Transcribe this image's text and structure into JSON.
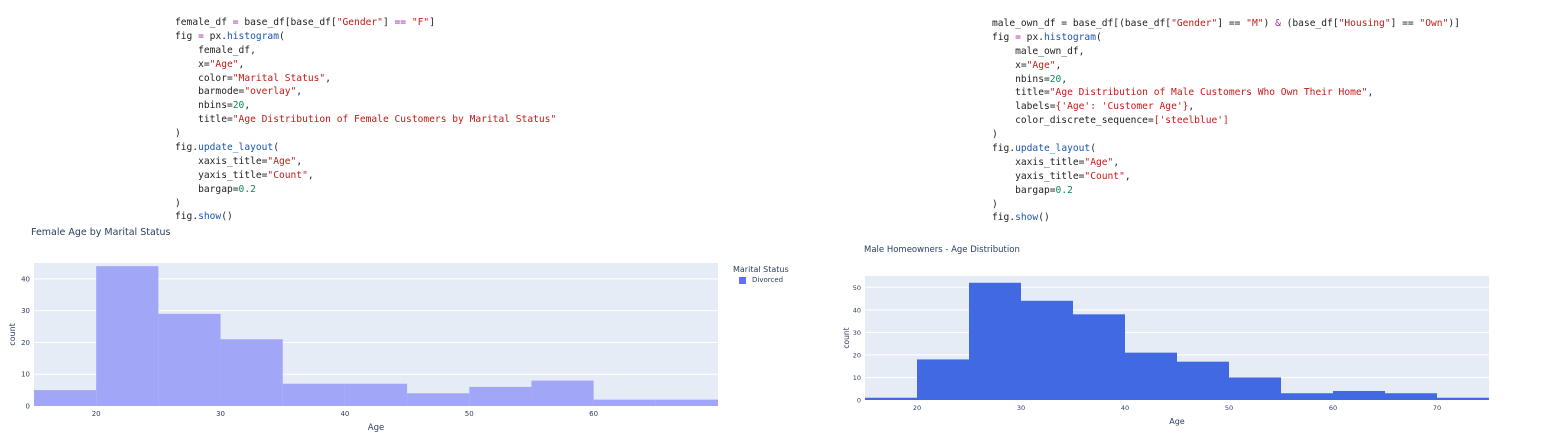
{
  "left": {
    "code_lines": [
      [
        [
          "female_df",
          "plain"
        ],
        [
          " = ",
          "op"
        ],
        [
          "base_df[base_df[",
          "plain"
        ],
        [
          "\"Gender\"",
          "str"
        ],
        [
          "] ",
          "plain"
        ],
        [
          "==",
          "op"
        ],
        [
          " ",
          "plain"
        ],
        [
          "\"F\"",
          "str"
        ],
        [
          "]",
          "plain"
        ]
      ],
      [
        [
          "fig ",
          "plain"
        ],
        [
          "=",
          "op"
        ],
        [
          " px.",
          "plain"
        ],
        [
          "histogram",
          "fn"
        ],
        [
          "(",
          "plain"
        ]
      ],
      [
        [
          "    female_df,",
          "plain"
        ]
      ],
      [
        [
          "    x=",
          "plain"
        ],
        [
          "\"Age\"",
          "str"
        ],
        [
          ",",
          "plain"
        ]
      ],
      [
        [
          "    color=",
          "plain"
        ],
        [
          "\"Marital Status\"",
          "str"
        ],
        [
          ",",
          "plain"
        ]
      ],
      [
        [
          "    barmode=",
          "plain"
        ],
        [
          "\"overlay\"",
          "str"
        ],
        [
          ",",
          "plain"
        ]
      ],
      [
        [
          "    nbins=",
          "plain"
        ],
        [
          "20",
          "num"
        ],
        [
          ",",
          "plain"
        ]
      ],
      [
        [
          "    title=",
          "plain"
        ],
        [
          "\"Age Distribution of Female Customers by Marital Status\"",
          "str"
        ]
      ],
      [
        [
          ")",
          "plain"
        ]
      ],
      [
        [
          "fig.",
          "plain"
        ],
        [
          "update_layout",
          "fn"
        ],
        [
          "(",
          "plain"
        ]
      ],
      [
        [
          "    xaxis_title=",
          "plain"
        ],
        [
          "\"Age\"",
          "str"
        ],
        [
          ",",
          "plain"
        ]
      ],
      [
        [
          "    yaxis_title=",
          "plain"
        ],
        [
          "\"Count\"",
          "str"
        ],
        [
          ",",
          "plain"
        ]
      ],
      [
        [
          "    bargap=",
          "plain"
        ],
        [
          "0.2",
          "num"
        ]
      ],
      [
        [
          ")",
          "plain"
        ]
      ],
      [
        [
          "fig.",
          "plain"
        ],
        [
          "show",
          "fn"
        ],
        [
          "()",
          "plain"
        ]
      ]
    ],
    "plot_title": "Female Age by Marital Status",
    "legend_title": "Marital Status",
    "legend_items": [
      {
        "label": "Divorced",
        "color": "#636efa"
      }
    ]
  },
  "right": {
    "code_lines": [
      [
        [
          "male_own_df = base_df[(base_df[",
          "plain"
        ],
        [
          "\"Gender\"",
          "str"
        ],
        [
          "] == ",
          "plain"
        ],
        [
          "\"M\"",
          "str"
        ],
        [
          ") ",
          "plain"
        ],
        [
          "&",
          "op"
        ],
        [
          " (base_df[",
          "plain"
        ],
        [
          "\"Housing\"",
          "str"
        ],
        [
          "] == ",
          "plain"
        ],
        [
          "\"Own\"",
          "str"
        ],
        [
          ")]",
          "plain"
        ]
      ],
      [
        [
          "fig ",
          "plain"
        ],
        [
          "=",
          "op"
        ],
        [
          " px.",
          "plain"
        ],
        [
          "histogram",
          "fn"
        ],
        [
          "(",
          "plain"
        ]
      ],
      [
        [
          "    male_own_df,",
          "plain"
        ]
      ],
      [
        [
          "    x=",
          "plain"
        ],
        [
          "\"Age\"",
          "str"
        ],
        [
          ",",
          "plain"
        ]
      ],
      [
        [
          "    nbins=",
          "plain"
        ],
        [
          "20",
          "num"
        ],
        [
          ",",
          "plain"
        ]
      ],
      [
        [
          "    title=",
          "plain"
        ],
        [
          "\"Age Distribution of Male Customers Who Own Their Home\"",
          "str"
        ],
        [
          ",",
          "plain"
        ]
      ],
      [
        [
          "    labels=",
          "plain"
        ],
        [
          "{'Age': 'Customer Age'}",
          "str"
        ],
        [
          ",",
          "plain"
        ]
      ],
      [
        [
          "    color_discrete_sequence=",
          "plain"
        ],
        [
          "['steelblue']",
          "str"
        ]
      ],
      [
        [
          ")",
          "plain"
        ]
      ],
      [
        [
          "fig.",
          "plain"
        ],
        [
          "update_layout",
          "fn"
        ],
        [
          "(",
          "plain"
        ]
      ],
      [
        [
          "    xaxis_title=",
          "plain"
        ],
        [
          "\"Age\"",
          "str"
        ],
        [
          ",",
          "plain"
        ]
      ],
      [
        [
          "    yaxis_title=",
          "plain"
        ],
        [
          "\"Count\"",
          "str"
        ],
        [
          ",",
          "plain"
        ]
      ],
      [
        [
          "    bargap=",
          "plain"
        ],
        [
          "0.2",
          "num"
        ]
      ],
      [
        [
          ")",
          "plain"
        ]
      ],
      [
        [
          "fig.",
          "plain"
        ],
        [
          "show",
          "fn"
        ],
        [
          "()",
          "plain"
        ]
      ]
    ],
    "plot_title": "Male Homeowners - Age Distribution"
  },
  "chart_data": [
    {
      "type": "bar",
      "title": "Female Age by Marital Status",
      "xlabel": "Age",
      "ylabel": "count",
      "xlim": [
        15,
        70
      ],
      "ylim": [
        0,
        45
      ],
      "xticks": [
        20,
        30,
        40,
        50,
        60
      ],
      "yticks": [
        0,
        10,
        20,
        30,
        40
      ],
      "bin_edges": [
        15,
        20,
        25,
        30,
        35,
        40,
        45,
        50,
        55,
        60,
        65,
        70
      ],
      "series": [
        {
          "name": "Divorced",
          "values": [
            5,
            44,
            29,
            21,
            7,
            7,
            4,
            6,
            8,
            2,
            2
          ]
        }
      ],
      "color": "#a1a6f7",
      "plot_bg": "#e5ecf6",
      "grid": true,
      "legend": "right"
    },
    {
      "type": "bar",
      "title": "Male Homeowners - Age Distribution",
      "xlabel": "Age",
      "ylabel": "count",
      "xlim": [
        15,
        75
      ],
      "ylim": [
        0,
        55
      ],
      "xticks": [
        20,
        30,
        40,
        50,
        60,
        70
      ],
      "yticks": [
        0,
        10,
        20,
        30,
        40,
        50
      ],
      "bin_edges": [
        15,
        20,
        25,
        30,
        35,
        40,
        45,
        50,
        55,
        60,
        65,
        70,
        75
      ],
      "values": [
        1,
        18,
        52,
        44,
        38,
        21,
        17,
        10,
        3,
        4,
        3,
        1
      ],
      "color": "#4169e1",
      "plot_bg": "#e5ecf6",
      "grid": true
    }
  ]
}
